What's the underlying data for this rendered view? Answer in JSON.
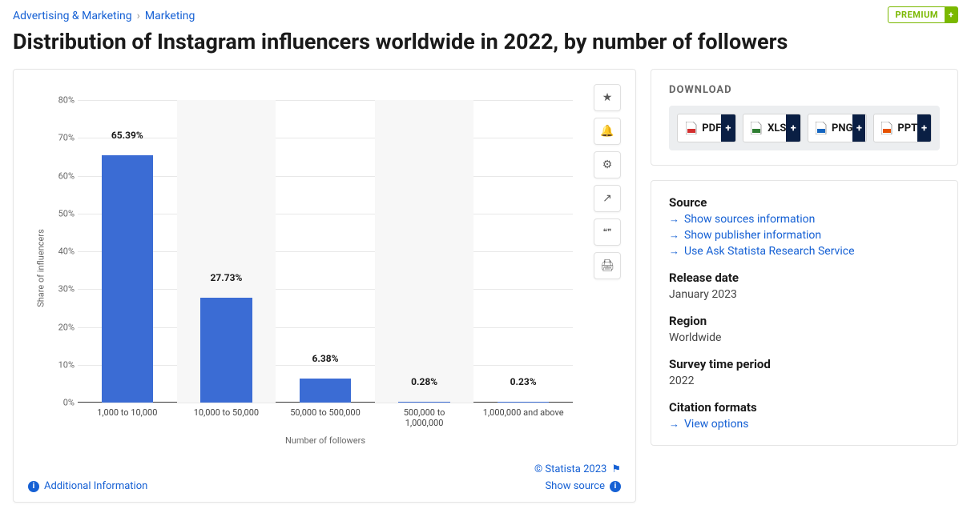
{
  "breadcrumb": {
    "parent": "Advertising & Marketing",
    "current": "Marketing"
  },
  "premium": {
    "label": "PREMIUM",
    "plus": "+"
  },
  "title": "Distribution of Instagram influencers worldwide in 2022, by number of followers",
  "chart": {
    "type": "bar",
    "y_axis_title": "Share of influencers",
    "x_axis_title": "Number of followers",
    "ylim": [
      0,
      80
    ],
    "ytick_step": 10,
    "ytick_suffix": "%",
    "categories": [
      "1,000 to 10,000",
      "10,000 to 50,000",
      "50,000 to 500,000",
      "500,000 to\n1,000,000",
      "1,000,000 and above"
    ],
    "values": [
      65.39,
      27.73,
      6.38,
      0.28,
      0.23
    ],
    "value_labels": [
      "65.39%",
      "27.73%",
      "6.38%",
      "0.28%",
      "0.23%"
    ],
    "bar_color": "#3b6cd4",
    "band_color": "#f7f7f7",
    "grid_color": "#e8e8e8",
    "bar_width_ratio": 0.52,
    "label_fontsize": 11,
    "value_fontsize": 12
  },
  "toolbar_icons": [
    "star",
    "bell",
    "gear",
    "share",
    "quote",
    "print"
  ],
  "chart_footer": {
    "additional_info": "Additional Information",
    "copyright": "© Statista 2023",
    "show_source": "Show source"
  },
  "download": {
    "title": "DOWNLOAD",
    "formats": [
      {
        "label": "PDF",
        "icon_color": "#d32f2f"
      },
      {
        "label": "XLS",
        "icon_color": "#2e7d32"
      },
      {
        "label": "PNG",
        "icon_color": "#1565c0"
      },
      {
        "label": "PPT",
        "icon_color": "#e65100"
      }
    ]
  },
  "meta": {
    "source": {
      "heading": "Source",
      "links": [
        "Show sources information",
        "Show publisher information",
        "Use Ask Statista Research Service"
      ]
    },
    "release": {
      "heading": "Release date",
      "value": "January 2023"
    },
    "region": {
      "heading": "Region",
      "value": "Worldwide"
    },
    "period": {
      "heading": "Survey time period",
      "value": "2022"
    },
    "citation": {
      "heading": "Citation formats",
      "link": "View options"
    }
  }
}
